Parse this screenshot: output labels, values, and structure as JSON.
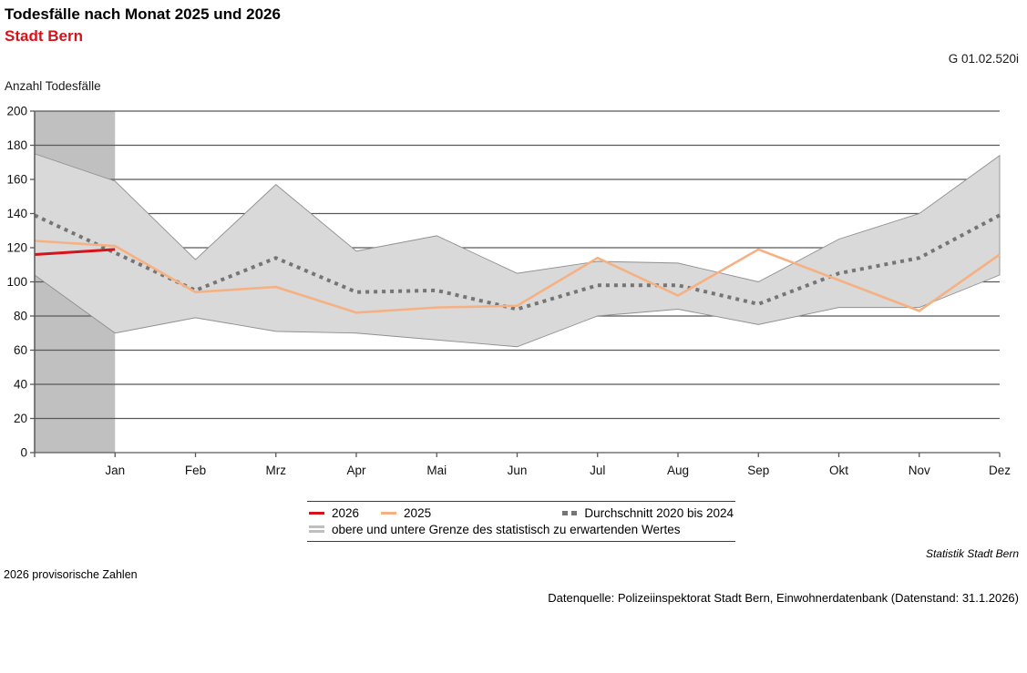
{
  "header": {
    "title": "Todesfälle nach Monat 2025 und 2026",
    "subtitle": "Stadt Bern",
    "figure_id": "G 01.02.520i",
    "y_axis_title": "Anzahl Todesfälle"
  },
  "chart_data": {
    "type": "line",
    "title": "Todesfälle nach Monat 2025 und 2026 – Stadt Bern",
    "ylabel": "Anzahl Todesfälle",
    "ylim": [
      0,
      200
    ],
    "y_ticks": [
      0,
      20,
      40,
      60,
      80,
      100,
      120,
      140,
      160,
      180,
      200
    ],
    "grid": true,
    "month_labels": [
      "Jan",
      "Feb",
      "Mrz",
      "Apr",
      "Mai",
      "Jun",
      "Jul",
      "Aug",
      "Sep",
      "Okt",
      "Nov",
      "Dez"
    ],
    "x_note": "each series has 13 points: the first lies on the y-axis (December of the previous year), followed by Jan through Dez",
    "series": [
      {
        "name": "2026",
        "color": "#d6131a",
        "style": "solid",
        "values": [
          116,
          119
        ]
      },
      {
        "name": "2025",
        "color": "#f5b183",
        "style": "solid",
        "values": [
          124,
          121,
          94,
          97,
          82,
          85,
          86,
          114,
          92,
          119,
          101,
          83,
          116
        ]
      },
      {
        "name": "Durchschnitt 2020 bis 2024",
        "color": "#757575",
        "style": "dotted",
        "values": [
          139,
          117,
          95,
          114,
          94,
          95,
          84,
          98,
          98,
          87,
          105,
          114,
          139
        ]
      }
    ],
    "band": {
      "name": "obere und untere Grenze des statistisch zu erwartenden Wertes",
      "fill": "#d9d9d9",
      "edge_color": "#8f8f8f",
      "upper": [
        175,
        159,
        113,
        157,
        118,
        127,
        105,
        112,
        111,
        100,
        125,
        140,
        174
      ],
      "lower": [
        104,
        70,
        79,
        71,
        70,
        66,
        62,
        80,
        84,
        75,
        85,
        85,
        104
      ]
    },
    "highlight_column": {
      "color": "#c0c0c0",
      "from_point_index": 0,
      "to_point_index": 1
    },
    "gridline_color": "#595959",
    "legend_position": "bottom"
  },
  "footer": {
    "note_left": "2026 provisorische Zahlen",
    "credit": "Statistik Stadt Bern",
    "datasource": "Datenquelle: Polizeiinspektorat Stadt Bern, Einwohnerdatenbank (Datenstand: 31.1.2026)"
  }
}
